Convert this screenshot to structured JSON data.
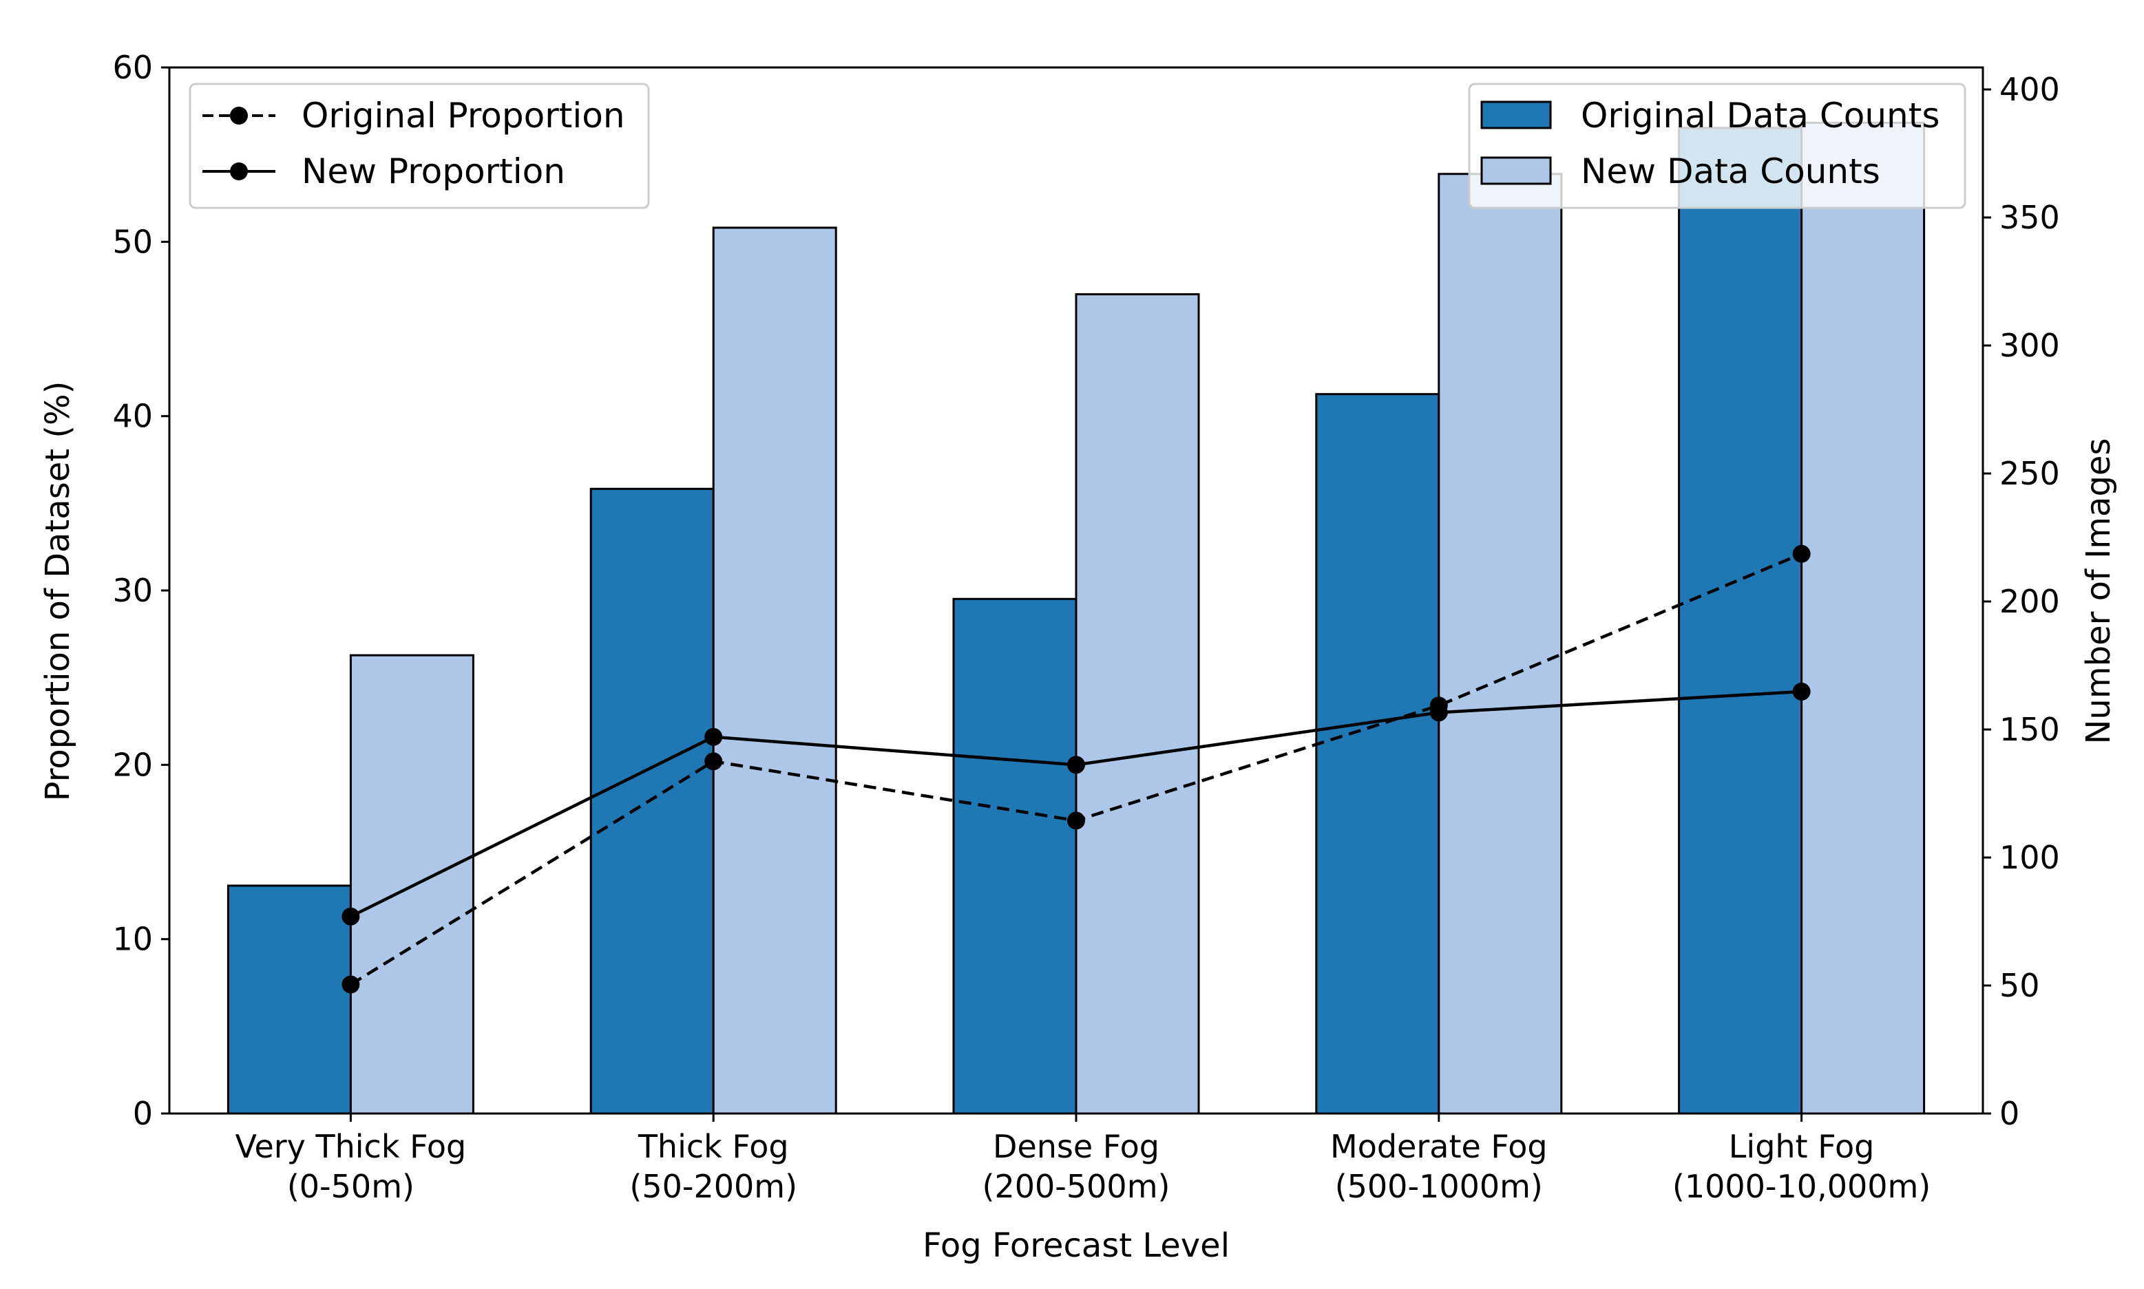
{
  "chart_data": {
    "type": "bar",
    "xlabel": "Fog Forecast Level",
    "ylabel_left": "Proportion of Dataset (%)",
    "ylabel_right": "Number of Images",
    "categories": [
      {
        "line1": "Very Thick Fog",
        "line2": "(0-50m)"
      },
      {
        "line1": "Thick Fog",
        "line2": "(50-200m)"
      },
      {
        "line1": "Dense Fog",
        "line2": "(200-500m)"
      },
      {
        "line1": "Moderate Fog",
        "line2": "(500-1000m)"
      },
      {
        "line1": "Light Fog",
        "line2": "(1000-10,000m)"
      }
    ],
    "ylim_left": [
      0,
      60
    ],
    "yticks_left": [
      0,
      10,
      20,
      30,
      40,
      50,
      60
    ],
    "ylim_right": [
      0,
      408.6
    ],
    "yticks_right": [
      0,
      50,
      100,
      150,
      200,
      250,
      300,
      350,
      400
    ],
    "bar_series": [
      {
        "name": "Original Data Counts",
        "color": "#1f77b4",
        "values": [
          89,
          244,
          201,
          281,
          385
        ]
      },
      {
        "name": "New Data Counts",
        "color": "#aec7e8",
        "values": [
          179,
          346,
          320,
          367,
          387
        ]
      }
    ],
    "line_series": [
      {
        "name": "Original Proportion",
        "style": "dashed",
        "color": "#000000",
        "values": [
          7.4,
          20.2,
          16.8,
          23.4,
          32.1
        ]
      },
      {
        "name": "New Proportion",
        "style": "solid",
        "color": "#000000",
        "values": [
          11.3,
          21.6,
          20.0,
          23.0,
          24.2
        ]
      }
    ],
    "legend_lines_position": "upper-left",
    "legend_bars_position": "upper-right",
    "grid": false
  }
}
